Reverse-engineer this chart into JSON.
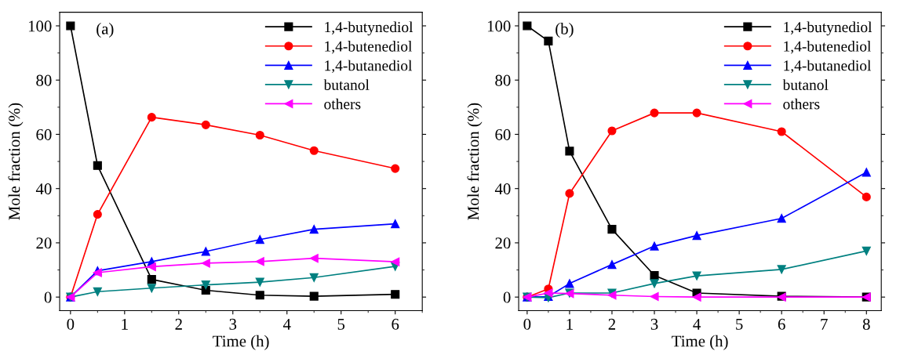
{
  "chart_data": [
    {
      "type": "line",
      "annotations": [
        {
          "text": "(a)"
        }
      ],
      "xlabel": "Time (h)",
      "ylabel": "Mole fraction (%)",
      "xlim": [
        -0.2,
        6.5
      ],
      "ylim": [
        -5,
        105
      ],
      "xticks": [
        0,
        1,
        2,
        3,
        4,
        5,
        6
      ],
      "yticks": [
        0,
        20,
        40,
        60,
        80,
        100
      ],
      "legend": "top right",
      "grid": false,
      "x": [
        0,
        0.5,
        1.5,
        2.5,
        3.5,
        4.5,
        6
      ],
      "series": [
        {
          "name": "1,4-butynediol",
          "color": "#000000",
          "marker": "square",
          "values": [
            100,
            48.5,
            6.5,
            2.5,
            0.7,
            0.3,
            1.0
          ]
        },
        {
          "name": "1,4-butenediol",
          "color": "#ff0000",
          "marker": "circle",
          "values": [
            0,
            30.5,
            66.3,
            63.5,
            59.7,
            54,
            47.4
          ]
        },
        {
          "name": "1,4-butanediol",
          "color": "#0000ff",
          "marker": "triangle",
          "values": [
            0,
            9.7,
            13.1,
            16.8,
            21.2,
            25,
            27
          ]
        },
        {
          "name": "butanol",
          "color": "#008080",
          "marker": "triangle_down",
          "values": [
            0,
            2,
            3.3,
            4.5,
            5.5,
            7.2,
            11.3
          ]
        },
        {
          "name": "others",
          "color": "#ff00ff",
          "marker": "triangle_left",
          "values": [
            0,
            9,
            11.2,
            12.5,
            13.1,
            14.3,
            13
          ]
        }
      ]
    },
    {
      "type": "line",
      "annotations": [
        {
          "text": "(b)"
        }
      ],
      "xlabel": "Time (h)",
      "ylabel": "Mole fraction (%)",
      "xlim": [
        -0.2,
        8.35
      ],
      "ylim": [
        -5,
        105
      ],
      "xticks": [
        0,
        1,
        2,
        3,
        4,
        5,
        6,
        7,
        8
      ],
      "yticks": [
        0,
        20,
        40,
        60,
        80,
        100
      ],
      "legend": "top right",
      "grid": false,
      "x": [
        0,
        0.5,
        1,
        2,
        3,
        4,
        6,
        8
      ],
      "series": [
        {
          "name": "1,4-butynediol",
          "color": "#000000",
          "marker": "square",
          "values": [
            100,
            94.4,
            53.8,
            25,
            8,
            1.5,
            0.3,
            0
          ]
        },
        {
          "name": "1,4-butenediol",
          "color": "#ff0000",
          "marker": "circle",
          "values": [
            0,
            3,
            38.2,
            61.3,
            67.9,
            67.9,
            61,
            36.9
          ]
        },
        {
          "name": "1,4-butanediol",
          "color": "#0000ff",
          "marker": "triangle",
          "values": [
            0,
            0.2,
            5,
            12,
            18.8,
            22.7,
            29,
            46
          ]
        },
        {
          "name": "butanol",
          "color": "#008080",
          "marker": "triangle_down",
          "values": [
            0,
            -0.2,
            1.5,
            1.5,
            5,
            7.8,
            10.2,
            17
          ]
        },
        {
          "name": "others",
          "color": "#ff00ff",
          "marker": "triangle_left",
          "values": [
            0,
            1.5,
            1.3,
            0.7,
            0.2,
            0,
            0,
            0
          ]
        }
      ]
    }
  ]
}
